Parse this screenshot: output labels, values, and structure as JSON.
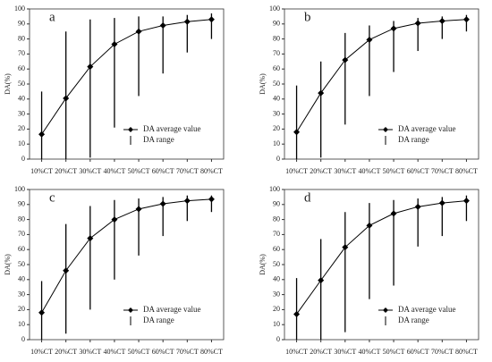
{
  "chart_data": [
    {
      "type": "line",
      "panel": "a",
      "ylabel": "DA(%)",
      "categories": [
        "10%CT",
        "20%CT",
        "30%CT",
        "40%CT",
        "50%CT",
        "60%CT",
        "70%CT",
        "80%CT"
      ],
      "series": [
        {
          "name": "DA average value",
          "color": "#000000",
          "values": [
            16.5,
            40.5,
            61.5,
            76.5,
            85,
            89,
            91.5,
            93
          ]
        }
      ],
      "range": {
        "name": "DA range",
        "color": "#000000",
        "low": [
          0,
          0,
          1,
          21,
          42,
          57,
          71,
          80
        ],
        "high": [
          45,
          85,
          93,
          94,
          95,
          95,
          96,
          97
        ]
      },
      "ylim": [
        0,
        100
      ],
      "yticks": [
        0,
        10,
        20,
        30,
        40,
        50,
        60,
        70,
        80,
        90,
        100
      ]
    },
    {
      "type": "line",
      "panel": "b",
      "ylabel": "DA(%)",
      "categories": [
        "10%CT",
        "20%CT",
        "30%CT",
        "40%CT",
        "50%CT",
        "60%CT",
        "70%CT",
        "80%CT"
      ],
      "series": [
        {
          "name": "DA average value",
          "color": "#000000",
          "values": [
            18,
            44,
            66,
            79.5,
            87,
            90.5,
            92,
            93
          ]
        }
      ],
      "range": {
        "name": "DA range",
        "color": "#000000",
        "low": [
          0,
          1,
          23,
          42,
          58,
          72,
          80,
          85
        ],
        "high": [
          49,
          65,
          84,
          89,
          92,
          94,
          95,
          96
        ]
      },
      "ylim": [
        0,
        100
      ],
      "yticks": [
        0,
        10,
        20,
        30,
        40,
        50,
        60,
        70,
        80,
        90,
        100
      ]
    },
    {
      "type": "line",
      "panel": "c",
      "ylabel": "DA(%)",
      "categories": [
        "10%CT",
        "20%CT",
        "30%CT",
        "40%CT",
        "50%CT",
        "60%CT",
        "70%CT",
        "80%CT"
      ],
      "series": [
        {
          "name": "DA average value",
          "color": "#000000",
          "values": [
            18,
            46,
            67.5,
            80,
            87,
            90.5,
            92.5,
            93.5
          ]
        }
      ],
      "range": {
        "name": "DA range",
        "color": "#000000",
        "low": [
          0,
          4,
          20,
          40,
          56,
          69,
          79,
          85
        ],
        "high": [
          39,
          77,
          89,
          93,
          94,
          95,
          96,
          96
        ]
      },
      "ylim": [
        0,
        100
      ],
      "yticks": [
        0,
        10,
        20,
        30,
        40,
        50,
        60,
        70,
        80,
        90,
        100
      ]
    },
    {
      "type": "line",
      "panel": "d",
      "ylabel": "DA(%)",
      "categories": [
        "10%CT",
        "20%CT",
        "30%CT",
        "40%CT",
        "50%CT",
        "60%CT",
        "70%CT",
        "80%CT"
      ],
      "series": [
        {
          "name": "DA average value",
          "color": "#000000",
          "values": [
            17,
            39.5,
            61.5,
            76,
            84,
            88.5,
            91,
            92.5
          ]
        }
      ],
      "range": {
        "name": "DA range",
        "color": "#000000",
        "low": [
          0,
          0,
          5,
          27,
          36,
          62,
          69,
          79
        ],
        "high": [
          41,
          67,
          85,
          91,
          93,
          94,
          95,
          96
        ]
      },
      "ylim": [
        0,
        100
      ],
      "yticks": [
        0,
        10,
        20,
        30,
        40,
        50,
        60,
        70,
        80,
        90,
        100
      ]
    }
  ]
}
